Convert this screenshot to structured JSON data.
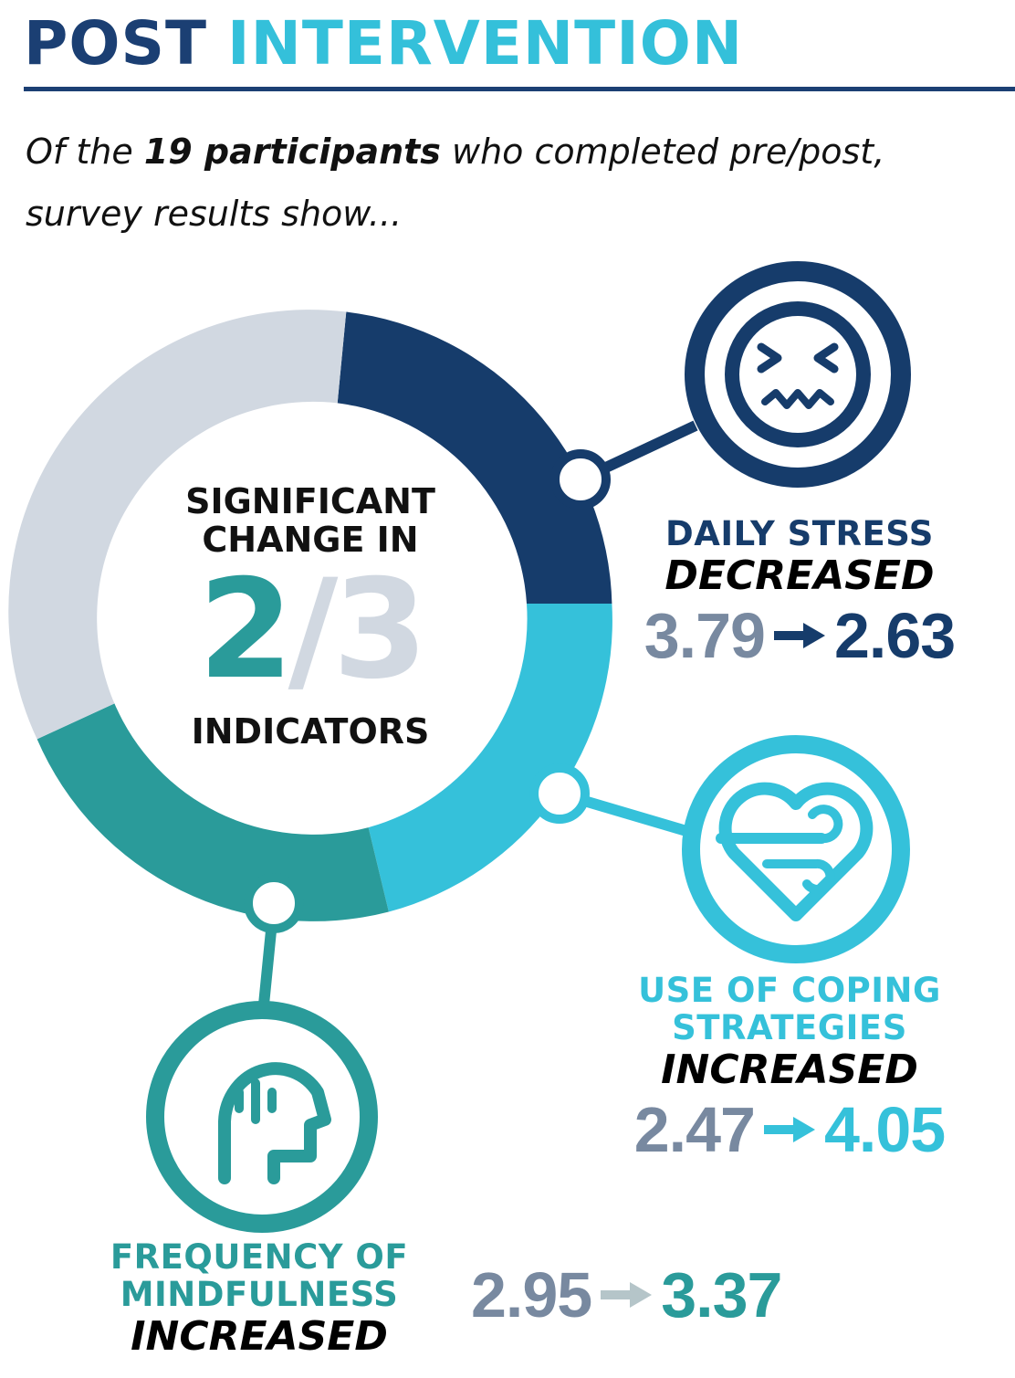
{
  "header": {
    "title_part1": "POST",
    "title_part2": "INTERVENTION"
  },
  "intro": {
    "text_before": "Of the ",
    "bold": "19 participants",
    "text_after": " who completed pre/post, survey results show..."
  },
  "center": {
    "line1": "SIGNIFICANT",
    "line2": "CHANGE IN",
    "numerator": "2",
    "slash": "/",
    "denominator": "3",
    "line3": "INDICATORS"
  },
  "indicators": [
    {
      "label_line1": "DAILY STRESS",
      "verb": "DECREASED",
      "pre": "3.79",
      "post": "2.63",
      "icon": "stressed-face-icon",
      "color": "#163c6b"
    },
    {
      "label_line1": "USE OF COPING",
      "label_line2": "STRATEGIES",
      "verb": "INCREASED",
      "pre": "2.47",
      "post": "4.05",
      "icon": "heart-breath-icon",
      "color": "#35c1da"
    },
    {
      "label_line1": "FREQUENCY OF",
      "label_line2": "MINDFULNESS",
      "verb": "INCREASED",
      "pre": "2.95",
      "post": "3.37",
      "icon": "head-mind-icon",
      "color": "#2a9b9a"
    }
  ],
  "colors": {
    "navy": "#163c6b",
    "cyan": "#35c1da",
    "teal": "#2a9b9a",
    "grey_ring": "#d1d8e1",
    "grey_number": "#7889a0"
  }
}
